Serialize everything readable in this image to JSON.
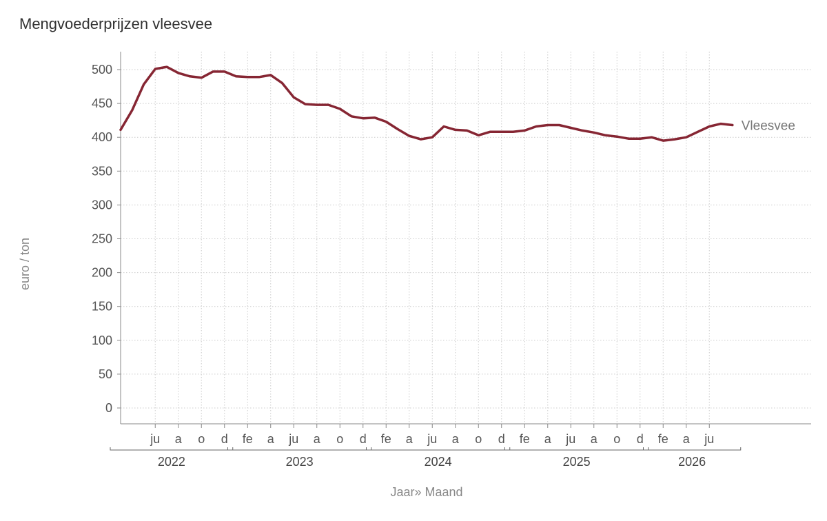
{
  "chart_data": {
    "type": "line",
    "title": "Mengvoederprijzen vleesvee",
    "xlabel": "Jaar» Maand",
    "ylabel": "euro / ton",
    "ylim": [
      0,
      500
    ],
    "yticks": [
      0,
      50,
      100,
      150,
      200,
      250,
      300,
      350,
      400,
      450,
      500
    ],
    "grid": true,
    "month_tick_labels": [
      "ju",
      "a",
      "o",
      "d",
      "fe",
      "a",
      "ju",
      "a",
      "o",
      "d",
      "fe",
      "a",
      "ju",
      "a",
      "o",
      "d",
      "fe",
      "a",
      "ju",
      "a",
      "o",
      "d",
      "fe",
      "a",
      "ju"
    ],
    "years": [
      "2022",
      "2023",
      "2024",
      "2025",
      "2026"
    ],
    "x": [
      "2022-03",
      "2022-04",
      "2022-05",
      "2022-06",
      "2022-07",
      "2022-08",
      "2022-09",
      "2022-10",
      "2022-11",
      "2022-12",
      "2023-01",
      "2023-02",
      "2023-03",
      "2023-04",
      "2023-05",
      "2023-06",
      "2023-07",
      "2023-08",
      "2023-09",
      "2023-10",
      "2023-11",
      "2023-12",
      "2024-01",
      "2024-02",
      "2024-03",
      "2024-04",
      "2024-05",
      "2024-06",
      "2024-07",
      "2024-08",
      "2024-09",
      "2024-10",
      "2024-11",
      "2024-12",
      "2025-01",
      "2025-02",
      "2025-03",
      "2025-04",
      "2025-05",
      "2025-06",
      "2025-07",
      "2025-08",
      "2025-09",
      "2025-10",
      "2025-11",
      "2025-12",
      "2026-01",
      "2026-02",
      "2026-03",
      "2026-04",
      "2026-05",
      "2026-06",
      "2026-07",
      "2026-08"
    ],
    "series": [
      {
        "name": "Vleesvee",
        "color": "#862633",
        "values": [
          411,
          440,
          478,
          501,
          504,
          495,
          490,
          488,
          497,
          497,
          490,
          489,
          489,
          492,
          480,
          459,
          449,
          448,
          448,
          442,
          431,
          428,
          429,
          423,
          412,
          402,
          397,
          400,
          416,
          411,
          410,
          403,
          408,
          408,
          408,
          410,
          416,
          418,
          418,
          414,
          410,
          407,
          403,
          401,
          398,
          398,
          400,
          395,
          397,
          400,
          408,
          416,
          420,
          418
        ]
      }
    ]
  }
}
